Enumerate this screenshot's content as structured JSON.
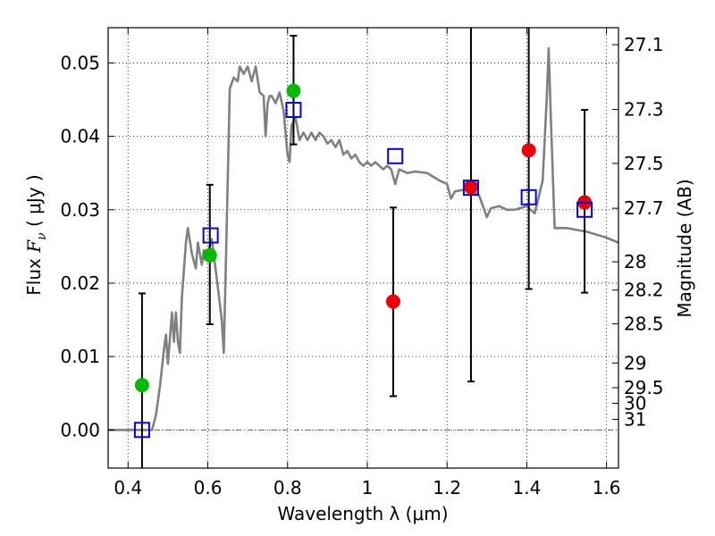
{
  "chart_data": {
    "type": "scatter",
    "title": "",
    "xlabel": "Wavelength  λ (μm)",
    "ylabel_parts": [
      "Flux ",
      "F",
      "ν",
      "  (  μJy  )"
    ],
    "y2label": "Magnitude (AB)",
    "xlim": [
      0.35,
      1.63
    ],
    "ylim": [
      -0.0052,
      0.0548
    ],
    "grid": true,
    "x_ticks": [
      0.4,
      0.6,
      0.8,
      1.0,
      1.2,
      1.4,
      1.6
    ],
    "x_tick_labels": [
      "0.4",
      "0.6",
      "0.8",
      "1",
      "1.2",
      "1.4",
      "1.6"
    ],
    "y_ticks": [
      0.0,
      0.01,
      0.02,
      0.03,
      0.04,
      0.05
    ],
    "y_tick_labels": [
      "0.00",
      "0.01",
      "0.02",
      "0.03",
      "0.04",
      "0.05"
    ],
    "y2_tick_labels": [
      "27.1",
      "27.3",
      "27.5",
      "27.7",
      "28",
      "28.2",
      "28.5",
      "29",
      "29.5",
      "30",
      "31"
    ],
    "colors": {
      "model": "#808080",
      "green": "#00bb00",
      "red": "#ee0000",
      "blue": "#0000ff",
      "errorbar": "#000000"
    },
    "model_spectrum": [
      [
        0.35,
        0.0
      ],
      [
        0.46,
        0.0
      ],
      [
        0.47,
        0.002
      ],
      [
        0.48,
        0.006
      ],
      [
        0.49,
        0.011
      ],
      [
        0.495,
        0.013
      ],
      [
        0.5,
        0.009
      ],
      [
        0.51,
        0.016
      ],
      [
        0.515,
        0.012
      ],
      [
        0.52,
        0.016
      ],
      [
        0.525,
        0.012
      ],
      [
        0.53,
        0.0105
      ],
      [
        0.535,
        0.018
      ],
      [
        0.545,
        0.0255
      ],
      [
        0.55,
        0.0275
      ],
      [
        0.56,
        0.024
      ],
      [
        0.57,
        0.022
      ],
      [
        0.575,
        0.0255
      ],
      [
        0.585,
        0.0225
      ],
      [
        0.59,
        0.0245
      ],
      [
        0.6,
        0.024
      ],
      [
        0.61,
        0.026
      ],
      [
        0.625,
        0.0195
      ],
      [
        0.635,
        0.015
      ],
      [
        0.64,
        0.0105
      ],
      [
        0.645,
        0.022
      ],
      [
        0.655,
        0.0465
      ],
      [
        0.665,
        0.048
      ],
      [
        0.675,
        0.0475
      ],
      [
        0.68,
        0.0495
      ],
      [
        0.69,
        0.0485
      ],
      [
        0.7,
        0.0495
      ],
      [
        0.71,
        0.0475
      ],
      [
        0.72,
        0.0495
      ],
      [
        0.73,
        0.046
      ],
      [
        0.74,
        0.0455
      ],
      [
        0.745,
        0.04
      ],
      [
        0.75,
        0.0445
      ],
      [
        0.755,
        0.0455
      ],
      [
        0.76,
        0.0455
      ],
      [
        0.77,
        0.0445
      ],
      [
        0.78,
        0.046
      ],
      [
        0.79,
        0.0435
      ],
      [
        0.8,
        0.0375
      ],
      [
        0.805,
        0.0365
      ],
      [
        0.81,
        0.0415
      ],
      [
        0.82,
        0.0425
      ],
      [
        0.83,
        0.0395
      ],
      [
        0.84,
        0.0405
      ],
      [
        0.85,
        0.0395
      ],
      [
        0.86,
        0.0405
      ],
      [
        0.87,
        0.0395
      ],
      [
        0.88,
        0.0405
      ],
      [
        0.89,
        0.04
      ],
      [
        0.9,
        0.039
      ],
      [
        0.91,
        0.0395
      ],
      [
        0.92,
        0.0385
      ],
      [
        0.93,
        0.0395
      ],
      [
        0.94,
        0.0375
      ],
      [
        0.95,
        0.038
      ],
      [
        0.96,
        0.037
      ],
      [
        0.97,
        0.0375
      ],
      [
        0.98,
        0.0365
      ],
      [
        0.99,
        0.036
      ],
      [
        1.0,
        0.0365
      ],
      [
        1.01,
        0.036
      ],
      [
        1.02,
        0.0365
      ],
      [
        1.03,
        0.036
      ],
      [
        1.04,
        0.0355
      ],
      [
        1.05,
        0.036
      ],
      [
        1.06,
        0.0355
      ],
      [
        1.07,
        0.0335
      ],
      [
        1.08,
        0.0355
      ],
      [
        1.1,
        0.035
      ],
      [
        1.12,
        0.0352
      ],
      [
        1.15,
        0.035
      ],
      [
        1.18,
        0.034
      ],
      [
        1.2,
        0.0335
      ],
      [
        1.21,
        0.0315
      ],
      [
        1.22,
        0.0325
      ],
      [
        1.25,
        0.0328
      ],
      [
        1.28,
        0.032
      ],
      [
        1.3,
        0.029
      ],
      [
        1.31,
        0.0302
      ],
      [
        1.33,
        0.0305
      ],
      [
        1.35,
        0.03
      ],
      [
        1.37,
        0.03
      ],
      [
        1.4,
        0.0305
      ],
      [
        1.42,
        0.0295
      ],
      [
        1.44,
        0.034
      ],
      [
        1.45,
        0.045
      ],
      [
        1.455,
        0.052
      ],
      [
        1.46,
        0.043
      ],
      [
        1.47,
        0.0275
      ],
      [
        1.5,
        0.0275
      ],
      [
        1.55,
        0.027
      ],
      [
        1.6,
        0.0262
      ],
      [
        1.63,
        0.0255
      ]
    ],
    "series": [
      {
        "marker": "circle-green",
        "points": [
          {
            "x": 0.435,
            "y": 0.0061
          },
          {
            "x": 0.605,
            "y": 0.0238
          },
          {
            "x": 0.815,
            "y": 0.0462
          }
        ]
      },
      {
        "marker": "circle-red",
        "points": [
          {
            "x": 1.065,
            "y": 0.0175
          },
          {
            "x": 1.26,
            "y": 0.0331
          },
          {
            "x": 1.405,
            "y": 0.0381
          },
          {
            "x": 1.545,
            "y": 0.031
          }
        ]
      },
      {
        "marker": "square-blue",
        "points": [
          {
            "x": 0.435,
            "y": 0.0
          },
          {
            "x": 0.607,
            "y": 0.0265
          },
          {
            "x": 0.815,
            "y": 0.0436
          },
          {
            "x": 1.07,
            "y": 0.0373
          },
          {
            "x": 1.26,
            "y": 0.033
          },
          {
            "x": 1.405,
            "y": 0.0317
          },
          {
            "x": 1.545,
            "y": 0.03
          }
        ]
      }
    ],
    "error_bars": [
      {
        "x": 0.435,
        "low": -0.0052,
        "high": 0.0186
      },
      {
        "x": 0.605,
        "low": 0.0144,
        "high": 0.0334
      },
      {
        "x": 0.815,
        "low": 0.0389,
        "high": 0.0537
      },
      {
        "x": 1.065,
        "low": 0.0046,
        "high": 0.0303
      },
      {
        "x": 1.26,
        "low": 0.0066,
        "high": 0.0548
      },
      {
        "x": 1.405,
        "low": 0.0192,
        "high": 0.0548
      },
      {
        "x": 1.545,
        "low": 0.0187,
        "high": 0.0436
      }
    ]
  }
}
